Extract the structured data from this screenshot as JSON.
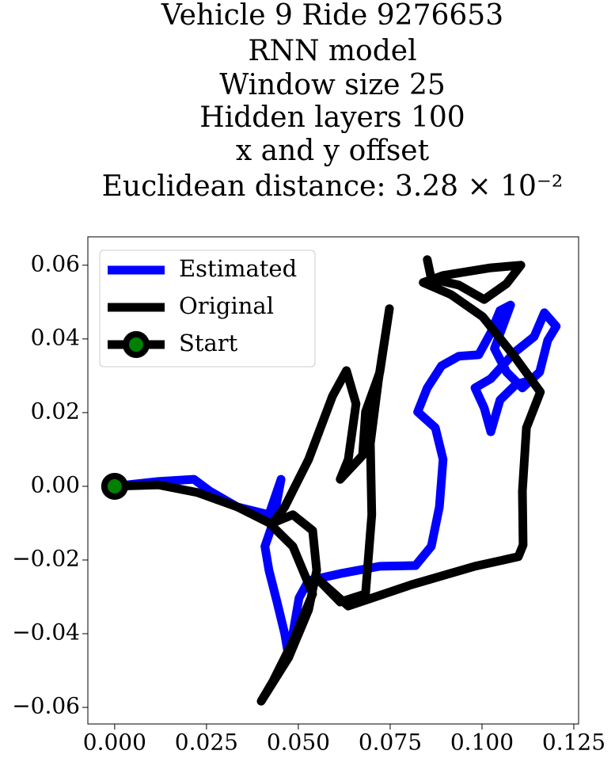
{
  "chart_data": {
    "type": "line",
    "title": [
      "Vehicle 9 Ride 9276653",
      "RNN model",
      "Window size 25",
      "Hidden layers 100",
      "x and y offset",
      "Euclidean distance: 3.28 × 10⁻²"
    ],
    "xlim": [
      -0.0073,
      0.1263
    ],
    "ylim": [
      -0.0645,
      0.0677
    ],
    "xticks": [
      {
        "value": 0,
        "label": "0.000"
      },
      {
        "value": 0.025,
        "label": "0.025"
      },
      {
        "value": 0.05,
        "label": "0.050"
      },
      {
        "value": 0.075,
        "label": "0.075"
      },
      {
        "value": 0.1,
        "label": "0.100"
      },
      {
        "value": 0.125,
        "label": "0.125"
      }
    ],
    "yticks": [
      {
        "value": -0.06,
        "label": "−0.06"
      },
      {
        "value": -0.04,
        "label": "−0.04"
      },
      {
        "value": -0.02,
        "label": "−0.02"
      },
      {
        "value": 0,
        "label": "0.00"
      },
      0.02,
      0.04,
      0.06
    ],
    "legend": "upper left",
    "series": [
      {
        "name": "Estimated",
        "color": "#0000ff",
        "x": [
          0,
          0.0119,
          0.0216,
          0.0259,
          0.0334,
          0.042,
          0.0453,
          0.0431,
          0.0409,
          0.042,
          0.0442,
          0.0463,
          0.0474,
          0.0489,
          0.0502,
          0.0528,
          0.0614,
          0.0722,
          0.0819,
          0.0862,
          0.0884,
          0.0894,
          0.0873,
          0.0825,
          0.0851,
          0.089,
          0.0937,
          0.0991,
          0.1024,
          0.1049,
          0.1078,
          0.1062,
          0.1034,
          0.1067,
          0.111,
          0.1157,
          0.1179,
          0.1202,
          0.117,
          0.1142,
          0.1088,
          0.1024,
          0.0981,
          0.1006,
          0.1024,
          0.1049,
          0.1093,
          0.1136
        ],
        "y": [
          0,
          0.0013,
          0.0019,
          -0.0013,
          -0.0056,
          -0.0077,
          0.0019,
          -0.0099,
          -0.0163,
          -0.0228,
          -0.0314,
          -0.04,
          -0.0464,
          -0.0378,
          -0.0303,
          -0.0256,
          -0.0237,
          -0.0217,
          -0.0215,
          -0.0163,
          -0.0056,
          0.0073,
          0.0159,
          0.0202,
          0.0267,
          0.0327,
          0.0353,
          0.0357,
          0.0417,
          0.0477,
          0.0492,
          0.0449,
          0.0374,
          0.031,
          0.0267,
          0.031,
          0.0396,
          0.0434,
          0.0471,
          0.0406,
          0.0363,
          0.0292,
          0.0267,
          0.0213,
          0.0148,
          0.0234,
          0.0277,
          0.0288
        ]
      },
      {
        "name": "Original",
        "color": "#000000",
        "x": [
          0,
          0.0119,
          0.0226,
          0.0334,
          0.042,
          0.0485,
          0.0539,
          0.0485,
          0.0431,
          0.0399,
          0.0474,
          0.0528,
          0.055,
          0.0539,
          0.0485,
          0.0431,
          0.0463,
          0.0528,
          0.0593,
          0.0631,
          0.0657,
          0.0636,
          0.0614,
          0.0675,
          0.0683,
          0.0722,
          0.0748,
          0.0718,
          0.0696,
          0.07,
          0.0683,
          0.0614,
          0.055,
          0.0636,
          0.0808,
          0.0981,
          0.1099,
          0.1112,
          0.111,
          0.1121,
          0.1159,
          0.1088,
          0.1002,
          0.0916,
          0.084,
          0.0894,
          0.1024,
          0.1106,
          0.1067,
          0.1006,
          0.0937,
          0.0862,
          0.0851
        ],
        "y": [
          0,
          0.0004,
          -0.0017,
          -0.0056,
          -0.0099,
          -0.0163,
          -0.0292,
          -0.0421,
          -0.0529,
          -0.0583,
          -0.0464,
          -0.0335,
          -0.0228,
          -0.012,
          -0.0077,
          -0.0099,
          -0.0056,
          0.0073,
          0.0245,
          0.0314,
          0.0224,
          0.0073,
          0.0019,
          0.0084,
          0.0202,
          0.031,
          0.0482,
          0.0288,
          0.0116,
          -0.0077,
          -0.0292,
          -0.0314,
          -0.0249,
          -0.0325,
          -0.0267,
          -0.0217,
          -0.0191,
          -0.0159,
          -0.0013,
          0.0159,
          0.0256,
          0.0353,
          0.046,
          0.052,
          0.0553,
          0.0572,
          0.0593,
          0.06,
          0.055,
          0.0507,
          0.0546,
          0.0563,
          0.0615
        ]
      },
      {
        "name": "Start",
        "color": "#000000",
        "marker_color": "#008000",
        "x": [
          0
        ],
        "y": [
          0
        ]
      }
    ]
  }
}
